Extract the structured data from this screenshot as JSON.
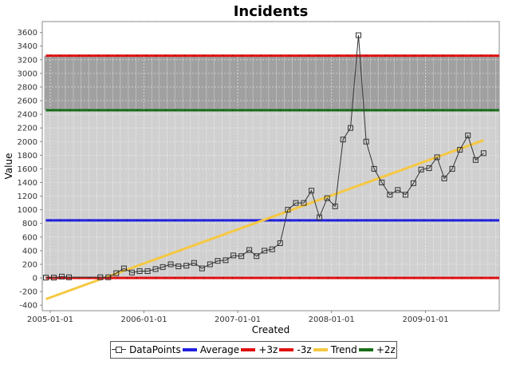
{
  "chart_data": {
    "type": "line",
    "title": "Incidents",
    "xlabel": "Created",
    "ylabel": "Value",
    "xlim": [
      "2004-12-01",
      "2009-10-15"
    ],
    "ylim": [
      -480,
      3760
    ],
    "y_ticks": [
      -400,
      -200,
      0,
      200,
      400,
      600,
      800,
      1000,
      1200,
      1400,
      1600,
      1800,
      2000,
      2200,
      2400,
      2600,
      2800,
      3000,
      3200,
      3400,
      3600
    ],
    "x_ticks": [
      "2005-01-01",
      "2006-01-01",
      "2007-01-01",
      "2008-01-01",
      "2009-01-01"
    ],
    "grid": true,
    "legend_position": "bottom",
    "bands": [
      {
        "from": 2460,
        "to": 3260,
        "color": "#a0a0a0"
      },
      {
        "from": 0,
        "to": 2460,
        "color": "#d0d0d0"
      }
    ],
    "series": [
      {
        "name": "DataPoints",
        "style": "line-with-square-markers",
        "color": "#333333",
        "points": [
          [
            "2004-12-15",
            5
          ],
          [
            "2005-01-15",
            5
          ],
          [
            "2005-02-15",
            20
          ],
          [
            "2005-03-15",
            10
          ],
          [
            "2005-07-15",
            10
          ],
          [
            "2005-08-15",
            10
          ],
          [
            "2005-09-15",
            70
          ],
          [
            "2005-10-15",
            140
          ],
          [
            "2005-11-15",
            80
          ],
          [
            "2005-12-15",
            100
          ],
          [
            "2006-01-15",
            100
          ],
          [
            "2006-02-15",
            130
          ],
          [
            "2006-03-15",
            160
          ],
          [
            "2006-04-15",
            200
          ],
          [
            "2006-05-15",
            170
          ],
          [
            "2006-06-15",
            180
          ],
          [
            "2006-07-15",
            220
          ],
          [
            "2006-08-15",
            140
          ],
          [
            "2006-09-15",
            200
          ],
          [
            "2006-10-15",
            250
          ],
          [
            "2006-11-15",
            260
          ],
          [
            "2006-12-15",
            330
          ],
          [
            "2007-01-15",
            320
          ],
          [
            "2007-02-15",
            410
          ],
          [
            "2007-03-15",
            320
          ],
          [
            "2007-04-15",
            400
          ],
          [
            "2007-05-15",
            420
          ],
          [
            "2007-06-15",
            510
          ],
          [
            "2007-07-15",
            1000
          ],
          [
            "2007-08-15",
            1100
          ],
          [
            "2007-09-15",
            1100
          ],
          [
            "2007-10-15",
            1280
          ],
          [
            "2007-11-15",
            890
          ],
          [
            "2007-12-15",
            1170
          ],
          [
            "2008-01-15",
            1050
          ],
          [
            "2008-02-15",
            2030
          ],
          [
            "2008-03-15",
            2200
          ],
          [
            "2008-04-15",
            3560
          ],
          [
            "2008-05-15",
            2000
          ],
          [
            "2008-06-15",
            1600
          ],
          [
            "2008-07-15",
            1400
          ],
          [
            "2008-08-15",
            1220
          ],
          [
            "2008-09-15",
            1290
          ],
          [
            "2008-10-15",
            1220
          ],
          [
            "2008-11-15",
            1390
          ],
          [
            "2008-12-15",
            1590
          ],
          [
            "2009-01-15",
            1610
          ],
          [
            "2009-02-15",
            1770
          ],
          [
            "2009-03-15",
            1460
          ],
          [
            "2009-04-15",
            1600
          ],
          [
            "2009-05-15",
            1880
          ],
          [
            "2009-06-15",
            2090
          ],
          [
            "2009-07-15",
            1730
          ],
          [
            "2009-08-15",
            1830
          ]
        ]
      },
      {
        "name": "Average",
        "style": "hline",
        "color": "#2020e0",
        "y": 845
      },
      {
        "name": "+3z",
        "style": "hline",
        "color": "#e01010",
        "y": 3260
      },
      {
        "name": "-3z",
        "style": "hline",
        "color": "#e01010",
        "y": 0
      },
      {
        "name": "Trend",
        "style": "line",
        "color": "#f5c842",
        "points": [
          [
            "2004-12-15",
            -310
          ],
          [
            "2009-08-15",
            2020
          ]
        ]
      },
      {
        "name": "+2z",
        "style": "hline",
        "color": "#1a6e1a",
        "y": 2460
      }
    ]
  }
}
